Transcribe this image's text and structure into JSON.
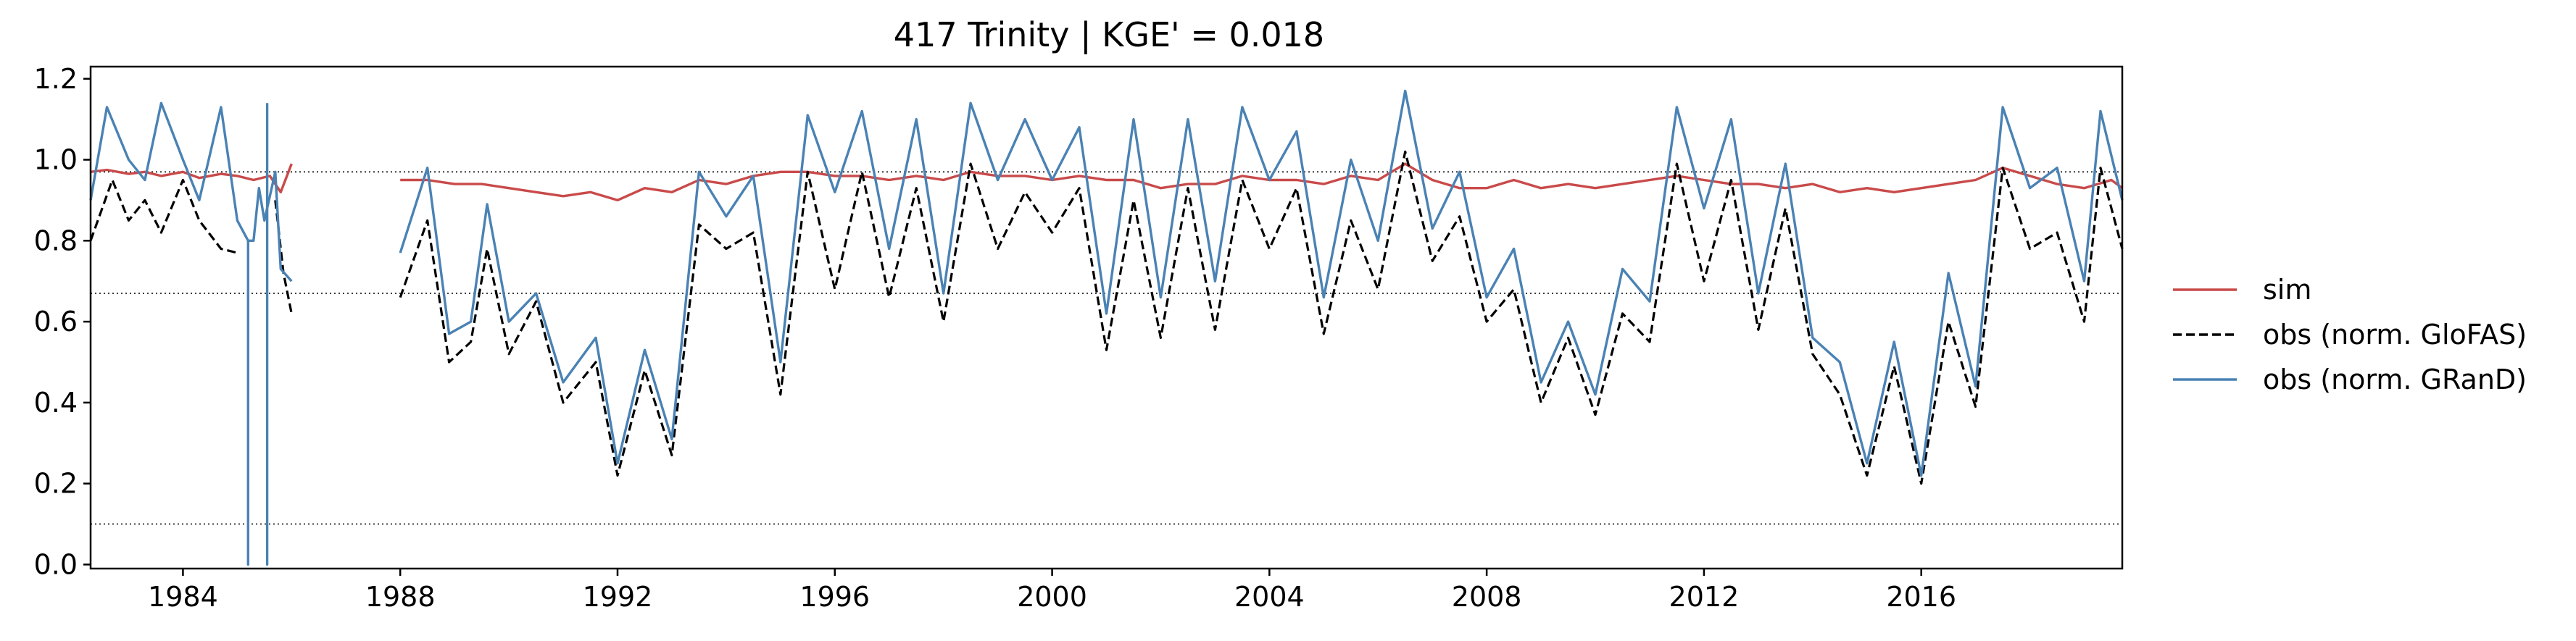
{
  "chart_data": {
    "type": "line",
    "title": "417  Trinity | KGE' = 0.018",
    "xlabel": "",
    "ylabel": "",
    "xlim": [
      1982.3,
      2019.7
    ],
    "ylim": [
      -0.01,
      1.23
    ],
    "x_ticks": [
      1984,
      1988,
      1992,
      1996,
      2000,
      2004,
      2008,
      2012,
      2016
    ],
    "y_ticks": [
      0.0,
      0.2,
      0.4,
      0.6,
      0.8,
      1.0,
      1.2
    ],
    "reference_lines": [
      0.97,
      0.67,
      0.1
    ],
    "grid": false,
    "legend_position": "right, outside plot",
    "series": [
      {
        "name": "sim",
        "color": "#c94a4a",
        "style": "solid",
        "segments": [
          [
            [
              1982.3,
              0.97
            ],
            [
              1982.6,
              0.975
            ],
            [
              1983.0,
              0.965
            ],
            [
              1983.3,
              0.97
            ],
            [
              1983.6,
              0.96
            ],
            [
              1984.0,
              0.97
            ],
            [
              1984.3,
              0.955
            ],
            [
              1984.7,
              0.965
            ],
            [
              1985.0,
              0.96
            ],
            [
              1985.3,
              0.95
            ],
            [
              1985.6,
              0.96
            ],
            [
              1985.8,
              0.92
            ],
            [
              1986.0,
              0.99
            ]
          ],
          [
            [
              1988.0,
              0.95
            ],
            [
              1988.5,
              0.95
            ],
            [
              1989.0,
              0.94
            ],
            [
              1989.5,
              0.94
            ],
            [
              1990.0,
              0.93
            ],
            [
              1990.5,
              0.92
            ],
            [
              1991.0,
              0.91
            ],
            [
              1991.5,
              0.92
            ],
            [
              1992.0,
              0.9
            ],
            [
              1992.5,
              0.93
            ],
            [
              1993.0,
              0.92
            ],
            [
              1993.5,
              0.95
            ],
            [
              1994.0,
              0.94
            ],
            [
              1994.5,
              0.96
            ],
            [
              1995.0,
              0.97
            ],
            [
              1995.5,
              0.97
            ],
            [
              1996.0,
              0.96
            ],
            [
              1996.5,
              0.96
            ],
            [
              1997.0,
              0.95
            ],
            [
              1997.5,
              0.96
            ],
            [
              1998.0,
              0.95
            ],
            [
              1998.5,
              0.97
            ],
            [
              1999.0,
              0.96
            ],
            [
              1999.5,
              0.96
            ],
            [
              2000.0,
              0.95
            ],
            [
              2000.5,
              0.96
            ],
            [
              2001.0,
              0.95
            ],
            [
              2001.5,
              0.95
            ],
            [
              2002.0,
              0.93
            ],
            [
              2002.5,
              0.94
            ],
            [
              2003.0,
              0.94
            ],
            [
              2003.5,
              0.96
            ],
            [
              2004.0,
              0.95
            ],
            [
              2004.5,
              0.95
            ],
            [
              2005.0,
              0.94
            ],
            [
              2005.5,
              0.96
            ],
            [
              2006.0,
              0.95
            ],
            [
              2006.5,
              0.99
            ],
            [
              2007.0,
              0.95
            ],
            [
              2007.5,
              0.93
            ],
            [
              2008.0,
              0.93
            ],
            [
              2008.5,
              0.95
            ],
            [
              2009.0,
              0.93
            ],
            [
              2009.5,
              0.94
            ],
            [
              2010.0,
              0.93
            ],
            [
              2010.5,
              0.94
            ],
            [
              2011.0,
              0.95
            ],
            [
              2011.5,
              0.96
            ],
            [
              2012.0,
              0.95
            ],
            [
              2012.5,
              0.94
            ],
            [
              2013.0,
              0.94
            ],
            [
              2013.5,
              0.93
            ],
            [
              2014.0,
              0.94
            ],
            [
              2014.5,
              0.92
            ],
            [
              2015.0,
              0.93
            ],
            [
              2015.5,
              0.92
            ],
            [
              2016.0,
              0.93
            ],
            [
              2016.5,
              0.94
            ],
            [
              2017.0,
              0.95
            ],
            [
              2017.5,
              0.98
            ],
            [
              2018.0,
              0.96
            ],
            [
              2018.5,
              0.94
            ],
            [
              2019.0,
              0.93
            ],
            [
              2019.5,
              0.95
            ],
            [
              2019.7,
              0.93
            ]
          ]
        ]
      },
      {
        "name": "obs (norm. GloFAS)",
        "color": "#000000",
        "style": "dashed",
        "segments": [
          [
            [
              1982.3,
              0.8
            ],
            [
              1982.7,
              0.95
            ],
            [
              1983.0,
              0.85
            ],
            [
              1983.3,
              0.9
            ],
            [
              1983.6,
              0.82
            ],
            [
              1984.0,
              0.95
            ],
            [
              1984.3,
              0.85
            ],
            [
              1984.7,
              0.78
            ],
            [
              1985.0,
              0.77
            ]
          ],
          [
            [
              1985.7,
              0.9
            ],
            [
              1985.85,
              0.72
            ],
            [
              1986.0,
              0.62
            ]
          ],
          [
            [
              1988.0,
              0.66
            ],
            [
              1988.5,
              0.85
            ],
            [
              1988.9,
              0.5
            ],
            [
              1989.3,
              0.55
            ],
            [
              1989.6,
              0.78
            ],
            [
              1990.0,
              0.52
            ],
            [
              1990.5,
              0.65
            ],
            [
              1991.0,
              0.4
            ],
            [
              1991.6,
              0.5
            ],
            [
              1992.0,
              0.22
            ],
            [
              1992.5,
              0.48
            ],
            [
              1993.0,
              0.27
            ],
            [
              1993.5,
              0.84
            ],
            [
              1994.0,
              0.78
            ],
            [
              1994.5,
              0.82
            ],
            [
              1995.0,
              0.42
            ],
            [
              1995.5,
              0.97
            ],
            [
              1996.0,
              0.68
            ],
            [
              1996.5,
              0.97
            ],
            [
              1997.0,
              0.66
            ],
            [
              1997.5,
              0.93
            ],
            [
              1998.0,
              0.6
            ],
            [
              1998.5,
              0.99
            ],
            [
              1999.0,
              0.78
            ],
            [
              1999.5,
              0.92
            ],
            [
              2000.0,
              0.82
            ],
            [
              2000.5,
              0.93
            ],
            [
              2001.0,
              0.53
            ],
            [
              2001.5,
              0.9
            ],
            [
              2002.0,
              0.56
            ],
            [
              2002.5,
              0.93
            ],
            [
              2003.0,
              0.58
            ],
            [
              2003.5,
              0.95
            ],
            [
              2004.0,
              0.78
            ],
            [
              2004.5,
              0.93
            ],
            [
              2005.0,
              0.57
            ],
            [
              2005.5,
              0.85
            ],
            [
              2006.0,
              0.68
            ],
            [
              2006.5,
              1.02
            ],
            [
              2007.0,
              0.75
            ],
            [
              2007.5,
              0.86
            ],
            [
              2008.0,
              0.6
            ],
            [
              2008.5,
              0.68
            ],
            [
              2009.0,
              0.4
            ],
            [
              2009.5,
              0.56
            ],
            [
              2010.0,
              0.37
            ],
            [
              2010.5,
              0.62
            ],
            [
              2011.0,
              0.55
            ],
            [
              2011.5,
              0.99
            ],
            [
              2012.0,
              0.7
            ],
            [
              2012.5,
              0.95
            ],
            [
              2013.0,
              0.58
            ],
            [
              2013.5,
              0.88
            ],
            [
              2014.0,
              0.52
            ],
            [
              2014.5,
              0.42
            ],
            [
              2015.0,
              0.22
            ],
            [
              2015.5,
              0.49
            ],
            [
              2016.0,
              0.2
            ],
            [
              2016.5,
              0.6
            ],
            [
              2017.0,
              0.39
            ],
            [
              2017.5,
              0.98
            ],
            [
              2018.0,
              0.78
            ],
            [
              2018.5,
              0.82
            ],
            [
              2019.0,
              0.6
            ],
            [
              2019.3,
              0.98
            ],
            [
              2019.7,
              0.78
            ]
          ]
        ]
      },
      {
        "name": "obs (norm. GRanD)",
        "color": "#4a82b4",
        "style": "solid",
        "segments": [
          [
            [
              1982.3,
              0.9
            ],
            [
              1982.6,
              1.13
            ],
            [
              1983.0,
              1.0
            ],
            [
              1983.3,
              0.95
            ],
            [
              1983.6,
              1.14
            ],
            [
              1984.0,
              1.0
            ],
            [
              1984.3,
              0.9
            ],
            [
              1984.7,
              1.13
            ],
            [
              1985.0,
              0.85
            ],
            [
              1985.2,
              0.8
            ],
            [
              1985.3,
              0.8
            ],
            [
              1985.4,
              0.93
            ],
            [
              1985.5,
              0.85
            ],
            [
              1985.7,
              0.97
            ],
            [
              1985.8,
              0.73
            ],
            [
              1986.0,
              0.7
            ]
          ],
          [
            [
              1988.0,
              0.77
            ],
            [
              1988.5,
              0.98
            ],
            [
              1988.9,
              0.57
            ],
            [
              1989.3,
              0.6
            ],
            [
              1989.6,
              0.89
            ],
            [
              1990.0,
              0.6
            ],
            [
              1990.5,
              0.67
            ],
            [
              1991.0,
              0.45
            ],
            [
              1991.6,
              0.56
            ],
            [
              1992.0,
              0.25
            ],
            [
              1992.5,
              0.53
            ],
            [
              1993.0,
              0.31
            ],
            [
              1993.5,
              0.97
            ],
            [
              1994.0,
              0.86
            ],
            [
              1994.5,
              0.96
            ],
            [
              1995.0,
              0.5
            ],
            [
              1995.5,
              1.11
            ],
            [
              1996.0,
              0.92
            ],
            [
              1996.5,
              1.12
            ],
            [
              1997.0,
              0.78
            ],
            [
              1997.5,
              1.1
            ],
            [
              1998.0,
              0.67
            ],
            [
              1998.5,
              1.14
            ],
            [
              1999.0,
              0.95
            ],
            [
              1999.5,
              1.1
            ],
            [
              2000.0,
              0.95
            ],
            [
              2000.5,
              1.08
            ],
            [
              2001.0,
              0.62
            ],
            [
              2001.5,
              1.1
            ],
            [
              2002.0,
              0.66
            ],
            [
              2002.5,
              1.1
            ],
            [
              2003.0,
              0.7
            ],
            [
              2003.5,
              1.13
            ],
            [
              2004.0,
              0.95
            ],
            [
              2004.5,
              1.07
            ],
            [
              2005.0,
              0.66
            ],
            [
              2005.5,
              1.0
            ],
            [
              2006.0,
              0.8
            ],
            [
              2006.5,
              1.17
            ],
            [
              2007.0,
              0.83
            ],
            [
              2007.5,
              0.97
            ],
            [
              2008.0,
              0.66
            ],
            [
              2008.5,
              0.78
            ],
            [
              2009.0,
              0.45
            ],
            [
              2009.5,
              0.6
            ],
            [
              2010.0,
              0.42
            ],
            [
              2010.5,
              0.73
            ],
            [
              2011.0,
              0.65
            ],
            [
              2011.5,
              1.13
            ],
            [
              2012.0,
              0.88
            ],
            [
              2012.5,
              1.1
            ],
            [
              2013.0,
              0.67
            ],
            [
              2013.5,
              0.99
            ],
            [
              2014.0,
              0.56
            ],
            [
              2014.5,
              0.5
            ],
            [
              2015.0,
              0.25
            ],
            [
              2015.5,
              0.55
            ],
            [
              2016.0,
              0.22
            ],
            [
              2016.5,
              0.72
            ],
            [
              2017.0,
              0.44
            ],
            [
              2017.5,
              1.13
            ],
            [
              2018.0,
              0.93
            ],
            [
              2018.5,
              0.98
            ],
            [
              2019.0,
              0.7
            ],
            [
              2019.3,
              1.12
            ],
            [
              2019.7,
              0.9
            ]
          ],
          [
            [
              1985.2,
              0.8
            ],
            [
              1985.2,
              0.0
            ],
            [
              1985.2,
              0.8
            ]
          ],
          [
            [
              1985.55,
              1.14
            ],
            [
              1985.55,
              0.0
            ],
            [
              1985.55,
              0.95
            ]
          ]
        ]
      }
    ]
  }
}
